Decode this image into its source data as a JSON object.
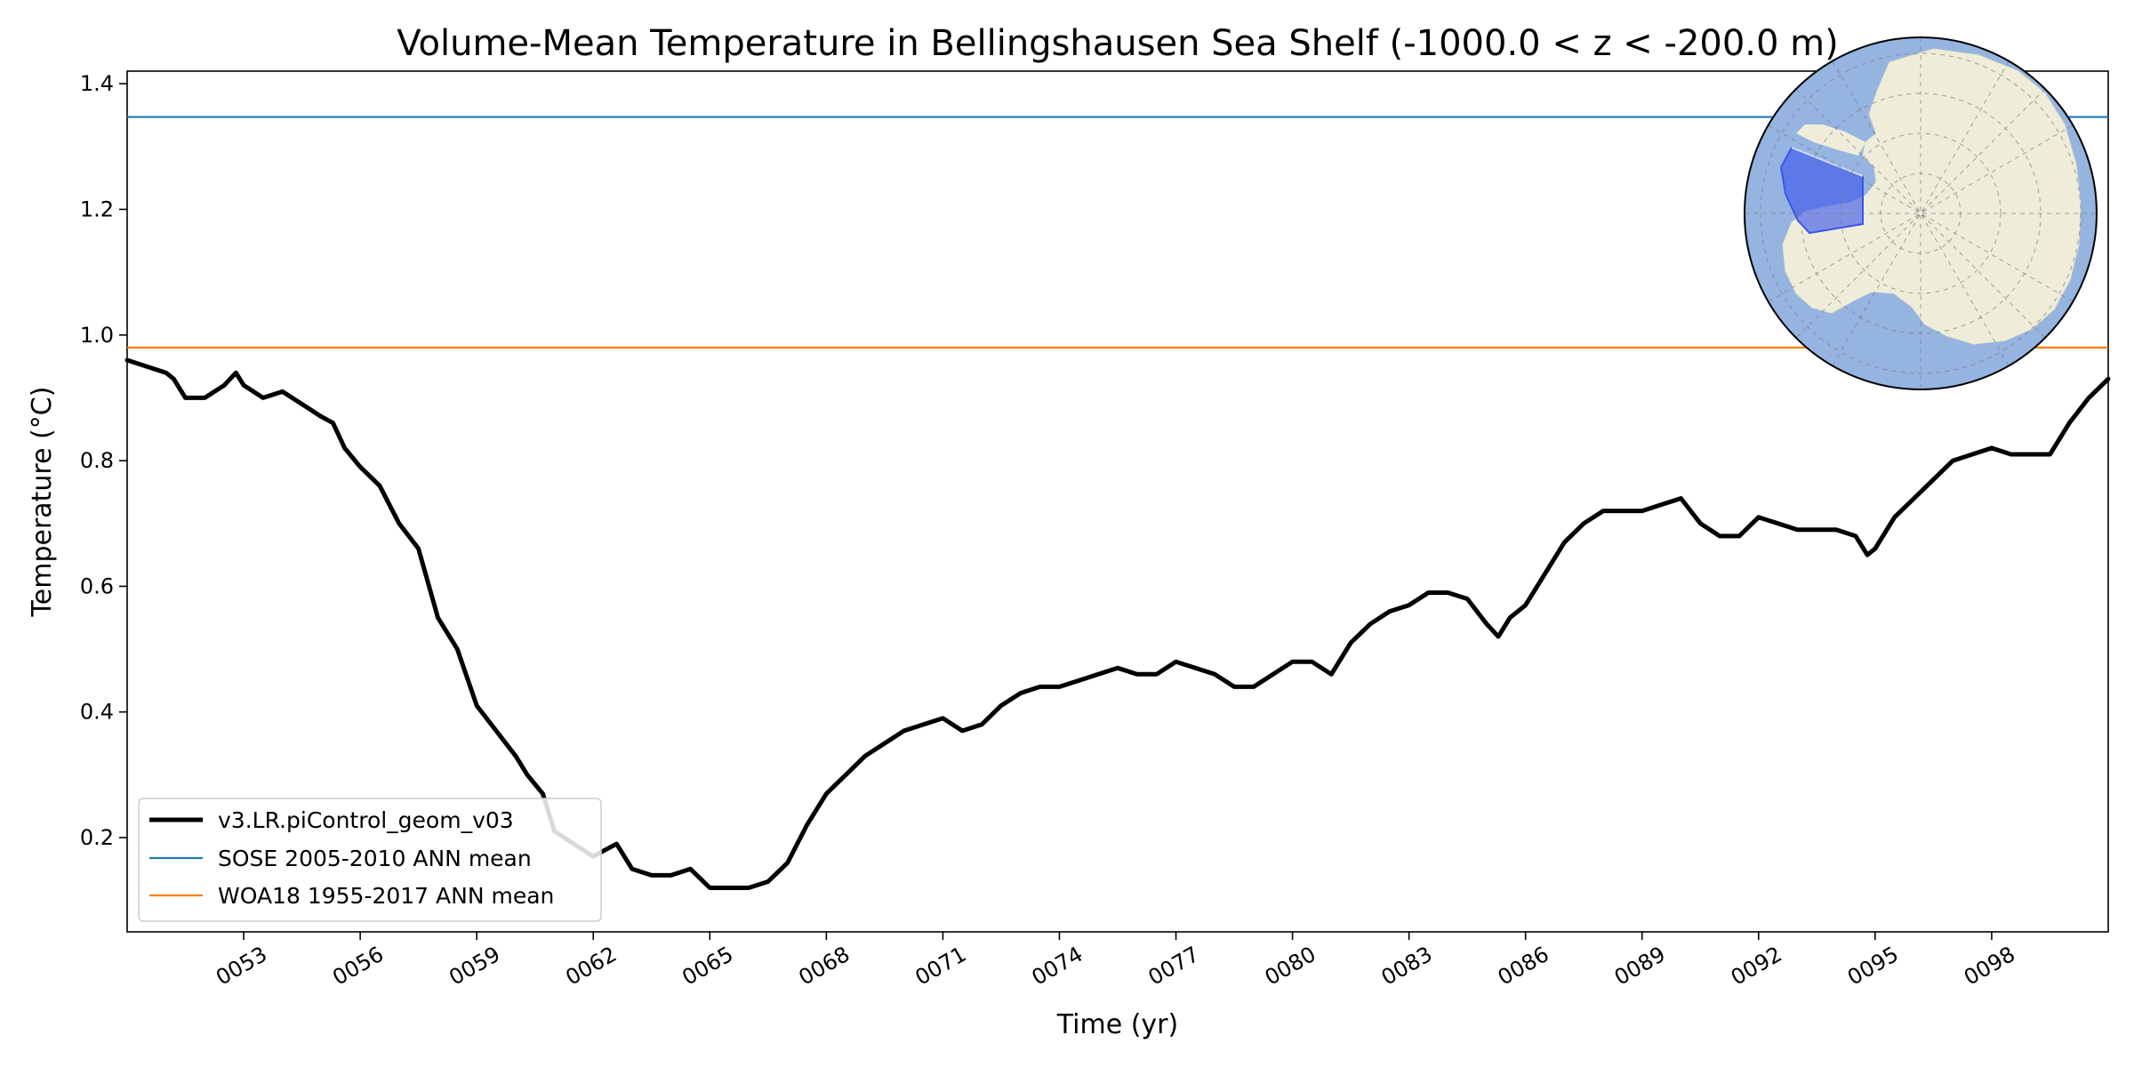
{
  "chart_data": {
    "type": "line",
    "title": "Volume-Mean Temperature in Bellingshausen Sea Shelf (-1000.0 < z < -200.0 m)",
    "xlabel": "Time (yr)",
    "ylabel": "Temperature (°C)",
    "xlim": [
      50.0,
      101.0
    ],
    "ylim": [
      0.05,
      1.42
    ],
    "x_ticks": [
      53,
      56,
      59,
      62,
      65,
      68,
      71,
      74,
      77,
      80,
      83,
      86,
      89,
      92,
      95,
      98
    ],
    "x_tick_labels": [
      "0053",
      "0056",
      "0059",
      "0062",
      "0065",
      "0068",
      "0071",
      "0074",
      "0077",
      "0080",
      "0083",
      "0086",
      "0089",
      "0092",
      "0095",
      "0098"
    ],
    "y_ticks": [
      0.2,
      0.4,
      0.6,
      0.8,
      1.0,
      1.2,
      1.4
    ],
    "y_tick_labels": [
      "0.2",
      "0.4",
      "0.6",
      "0.8",
      "1.0",
      "1.2",
      "1.4"
    ],
    "legend_position": "lower-left",
    "series": [
      {
        "name": "v3.LR.piControl_geom_v03",
        "color": "#000000",
        "style": "thick",
        "x": [
          50.0,
          50.5,
          51.0,
          51.2,
          51.5,
          52.0,
          52.5,
          52.8,
          53.0,
          53.5,
          54.0,
          54.5,
          55.0,
          55.3,
          55.6,
          56.0,
          56.5,
          57.0,
          57.5,
          58.0,
          58.5,
          59.0,
          59.5,
          60.0,
          60.3,
          60.7,
          61.0,
          61.5,
          62.0,
          62.3,
          62.6,
          63.0,
          63.5,
          64.0,
          64.5,
          65.0,
          65.5,
          66.0,
          66.5,
          67.0,
          67.5,
          68.0,
          68.5,
          69.0,
          69.5,
          70.0,
          70.5,
          71.0,
          71.5,
          72.0,
          72.5,
          73.0,
          73.5,
          74.0,
          74.5,
          75.0,
          75.5,
          76.0,
          76.5,
          77.0,
          77.5,
          78.0,
          78.5,
          79.0,
          79.5,
          80.0,
          80.5,
          81.0,
          81.5,
          82.0,
          82.5,
          83.0,
          83.5,
          84.0,
          84.5,
          85.0,
          85.3,
          85.6,
          86.0,
          86.5,
          87.0,
          87.5,
          88.0,
          88.5,
          89.0,
          89.5,
          90.0,
          90.5,
          91.0,
          91.5,
          92.0,
          92.5,
          93.0,
          93.5,
          94.0,
          94.5,
          94.8,
          95.0,
          95.5,
          96.0,
          96.5,
          97.0,
          97.5,
          98.0,
          98.5,
          99.0,
          99.5,
          100.0,
          100.5,
          101.0
        ],
        "values": [
          0.96,
          0.95,
          0.94,
          0.93,
          0.9,
          0.9,
          0.92,
          0.94,
          0.92,
          0.9,
          0.91,
          0.89,
          0.87,
          0.86,
          0.82,
          0.79,
          0.76,
          0.7,
          0.66,
          0.55,
          0.5,
          0.41,
          0.37,
          0.33,
          0.3,
          0.27,
          0.21,
          0.19,
          0.17,
          0.18,
          0.19,
          0.15,
          0.14,
          0.14,
          0.15,
          0.12,
          0.12,
          0.12,
          0.13,
          0.16,
          0.22,
          0.27,
          0.3,
          0.33,
          0.35,
          0.37,
          0.38,
          0.39,
          0.37,
          0.38,
          0.41,
          0.43,
          0.44,
          0.44,
          0.45,
          0.46,
          0.47,
          0.46,
          0.46,
          0.48,
          0.47,
          0.46,
          0.44,
          0.44,
          0.46,
          0.48,
          0.48,
          0.46,
          0.51,
          0.54,
          0.56,
          0.57,
          0.59,
          0.59,
          0.58,
          0.54,
          0.52,
          0.55,
          0.57,
          0.62,
          0.67,
          0.7,
          0.72,
          0.72,
          0.72,
          0.73,
          0.74,
          0.7,
          0.68,
          0.68,
          0.71,
          0.7,
          0.69,
          0.69,
          0.69,
          0.68,
          0.65,
          0.66,
          0.71,
          0.74,
          0.77,
          0.8,
          0.81,
          0.82,
          0.81,
          0.81,
          0.81,
          0.86,
          0.9,
          0.93
        ]
      },
      {
        "name": "SOSE 2005-2010 ANN mean",
        "color": "#1f77b4",
        "style": "hline",
        "value": 1.347
      },
      {
        "name": "WOA18 1955-2017 ANN mean",
        "color": "#ff7f0e",
        "style": "hline",
        "value": 0.98
      }
    ],
    "inset": {
      "type": "polar-map",
      "region": "Bellingshausen Sea Shelf",
      "ocean_color": "#95b4e0",
      "land_color": "#efedda",
      "region_color": "#3a55ee"
    }
  }
}
